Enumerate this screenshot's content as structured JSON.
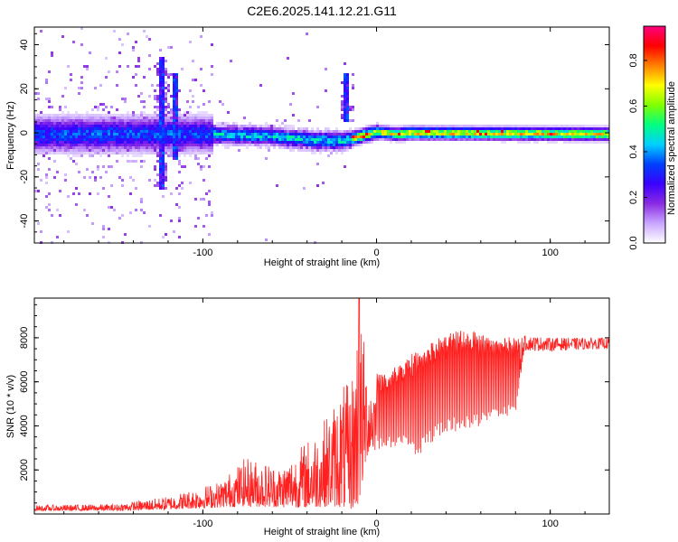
{
  "figure": {
    "title": "C2E6.2025.141.12.21.G11"
  },
  "chart_data": [
    {
      "type": "heatmap",
      "title": "C2E6.2025.141.12.21.G11",
      "xlabel": "Height of straight line (km)",
      "ylabel": "Frequency (Hz)",
      "xlim": [
        -197,
        134
      ],
      "ylim": [
        -50,
        48
      ],
      "xticks": [
        -100,
        0,
        100
      ],
      "yticks": [
        -40,
        -20,
        0,
        20,
        40
      ],
      "colorbar": {
        "label": "Normalized spectral amplitude",
        "range": [
          0,
          0.95
        ],
        "ticks": [
          0.0,
          0.2,
          0.4,
          0.6,
          0.8
        ],
        "colors": [
          "#ffffff",
          "#c9a6ff",
          "#8a2be2",
          "#3a00ff",
          "#0040ff",
          "#00d0ff",
          "#00ff80",
          "#80ff00",
          "#ffff00",
          "#ff8000",
          "#ff0000",
          "#ff0080"
        ]
      },
      "features": {
        "center_frequency_profile": [
          {
            "x": -190,
            "f": 0
          },
          {
            "x": -130,
            "f": 0
          },
          {
            "x": -100,
            "f": 0
          },
          {
            "x": -60,
            "f": -1
          },
          {
            "x": -35,
            "f": -3
          },
          {
            "x": -20,
            "f": -3
          },
          {
            "x": -10,
            "f": -1
          },
          {
            "x": 0,
            "f": 1
          },
          {
            "x": 10,
            "f": 0
          },
          {
            "x": 20,
            "f": 0.5
          },
          {
            "x": 134,
            "f": 0
          }
        ],
        "streaks": [
          {
            "x": -125,
            "f_from": -25,
            "f_to": 35
          },
          {
            "x": -117,
            "f_from": -12,
            "f_to": 28
          },
          {
            "x": -18,
            "f_from": 5,
            "f_to": 28
          }
        ]
      }
    },
    {
      "type": "line",
      "xlabel": "Height of straight line (km)",
      "ylabel": "SNR (10 * v/v)",
      "xlim": [
        -197,
        134
      ],
      "ylim": [
        0,
        9800
      ],
      "xticks": [
        -100,
        0,
        100
      ],
      "yticks": [
        2000,
        4000,
        6000,
        8000
      ],
      "series_color": "#ff2020",
      "envelope": [
        {
          "x": -197,
          "base": 150,
          "peak": 400
        },
        {
          "x": -150,
          "base": 150,
          "peak": 450
        },
        {
          "x": -120,
          "base": 200,
          "peak": 800
        },
        {
          "x": -90,
          "base": 300,
          "peak": 1500
        },
        {
          "x": -75,
          "base": 350,
          "peak": 2600
        },
        {
          "x": -55,
          "base": 300,
          "peak": 2200
        },
        {
          "x": -35,
          "base": 300,
          "peak": 3800
        },
        {
          "x": -26,
          "base": 350,
          "peak": 4800
        },
        {
          "x": -20,
          "base": 300,
          "peak": 6000
        },
        {
          "x": -15,
          "base": 200,
          "peak": 5800
        },
        {
          "x": -10,
          "base": 400,
          "peak": 9800
        },
        {
          "x": -5,
          "base": 2800,
          "peak": 6500
        },
        {
          "x": 5,
          "base": 3000,
          "peak": 6300
        },
        {
          "x": 15,
          "base": 3000,
          "peak": 7000
        },
        {
          "x": 25,
          "base": 2600,
          "peak": 7600
        },
        {
          "x": 35,
          "base": 3500,
          "peak": 8000
        },
        {
          "x": 50,
          "base": 3800,
          "peak": 8400
        },
        {
          "x": 60,
          "base": 4000,
          "peak": 8200
        },
        {
          "x": 80,
          "base": 4500,
          "peak": 8000
        },
        {
          "x": 85,
          "base": 7400,
          "peak": 8100
        },
        {
          "x": 100,
          "base": 7400,
          "peak": 8000
        },
        {
          "x": 134,
          "base": 7500,
          "peak": 8000
        }
      ]
    }
  ]
}
